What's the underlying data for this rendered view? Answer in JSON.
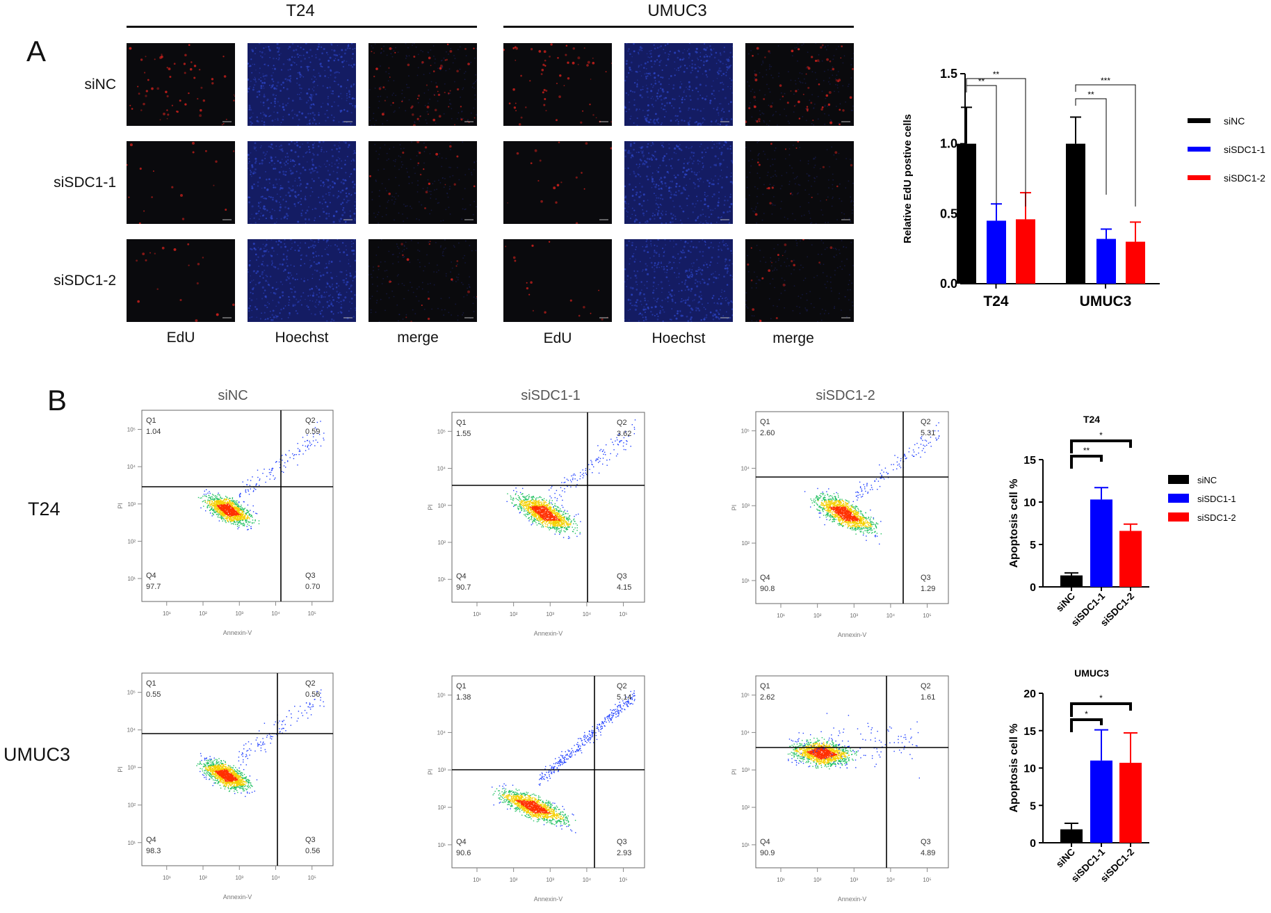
{
  "panel_a": {
    "letter": "A",
    "groups": [
      {
        "title": "T24",
        "columns": [
          "EdU",
          "Hoechst",
          "merge"
        ]
      },
      {
        "title": "UMUC3",
        "columns": [
          "EdU",
          "Hoechst",
          "merge"
        ]
      }
    ],
    "rows": [
      "siNC",
      "siSDC1-1",
      "siSDC1-2"
    ],
    "colors": {
      "edu": "#c8201c",
      "hoechst": "#2d46c8",
      "background": "#0a0a0d"
    }
  },
  "panel_b": {
    "letter": "B",
    "column_titles": [
      "siNC",
      "siSDC1-1",
      "siSDC1-2"
    ],
    "row_labels": [
      "T24",
      "UMUC3"
    ],
    "x_label": "Annexin-V",
    "y_label": "PI",
    "plots": [
      [
        {
          "Q1": "1.04",
          "Q2": "0.59",
          "Q3": "0.70",
          "Q4": "97.7"
        },
        {
          "Q1": "1.55",
          "Q2": "3.62",
          "Q3": "4.15",
          "Q4": "90.7"
        },
        {
          "Q1": "2.60",
          "Q2": "5.31",
          "Q3": "1.29",
          "Q4": "90.8"
        }
      ],
      [
        {
          "Q1": "0.55",
          "Q2": "0.56",
          "Q3": "0.56",
          "Q4": "98.3"
        },
        {
          "Q1": "1.38",
          "Q2": "5.14",
          "Q3": "2.93",
          "Q4": "90.6"
        },
        {
          "Q1": "2.62",
          "Q2": "1.61",
          "Q3": "4.89",
          "Q4": "90.9"
        }
      ]
    ],
    "quadrant_names": [
      "Q1",
      "Q2",
      "Q3",
      "Q4"
    ]
  },
  "chart_data": [
    {
      "type": "bar",
      "ylabel": "Relative EdU postive cells",
      "categories": [
        "T24",
        "UMUC3"
      ],
      "ylim": [
        0,
        1.5
      ],
      "yticks": [
        "0.0",
        "0.5",
        "1.0",
        "1.5"
      ],
      "series": [
        {
          "name": "siNC",
          "color": "#000000",
          "values": [
            1.0,
            1.0
          ],
          "errors": [
            0.26,
            0.19
          ]
        },
        {
          "name": "siSDC1-1",
          "color": "#0000ff",
          "values": [
            0.45,
            0.32
          ],
          "errors": [
            0.12,
            0.07
          ]
        },
        {
          "name": "siSDC1-2",
          "color": "#ff0000",
          "values": [
            0.46,
            0.3
          ],
          "errors": [
            0.19,
            0.14
          ]
        }
      ],
      "significance": [
        {
          "category": "T24",
          "from": "siNC",
          "to": "siSDC1-1",
          "label": "**"
        },
        {
          "category": "T24",
          "from": "siNC",
          "to": "siSDC1-2",
          "label": "**"
        },
        {
          "category": "UMUC3",
          "from": "siNC",
          "to": "siSDC1-1",
          "label": "**"
        },
        {
          "category": "UMUC3",
          "from": "siNC",
          "to": "siSDC1-2",
          "label": "***"
        }
      ],
      "legend": "right",
      "grid": false
    },
    {
      "type": "bar",
      "title": "T24",
      "ylabel": "Apoptosis cell %",
      "categories": [
        "siNC",
        "siSDC1-1",
        "siSDC1-2"
      ],
      "ylim": [
        0,
        15
      ],
      "yticks": [
        "0",
        "5",
        "10",
        "15"
      ],
      "colors": [
        "#000000",
        "#0000ff",
        "#ff0000"
      ],
      "values": [
        1.35,
        10.3,
        6.6
      ],
      "errors": [
        0.3,
        1.4,
        0.8
      ],
      "significance": [
        {
          "from": "siNC",
          "to": "siSDC1-1",
          "label": "**"
        },
        {
          "from": "siNC",
          "to": "siSDC1-2",
          "label": "*"
        }
      ],
      "legend": "right",
      "legend_entries": [
        "siNC",
        "siSDC1-1",
        "siSDC1-2"
      ]
    },
    {
      "type": "bar",
      "title": "UMUC3",
      "ylabel": "Apoptosis cell %",
      "categories": [
        "siNC",
        "siSDC1-1",
        "siSDC1-2"
      ],
      "ylim": [
        0,
        20
      ],
      "yticks": [
        "0",
        "5",
        "10",
        "15",
        "20"
      ],
      "colors": [
        "#000000",
        "#0000ff",
        "#ff0000"
      ],
      "values": [
        1.8,
        11.0,
        10.7
      ],
      "errors": [
        0.8,
        4.1,
        4.0
      ],
      "significance": [
        {
          "from": "siNC",
          "to": "siSDC1-1",
          "label": "*"
        },
        {
          "from": "siNC",
          "to": "siSDC1-2",
          "label": "*"
        }
      ]
    }
  ]
}
